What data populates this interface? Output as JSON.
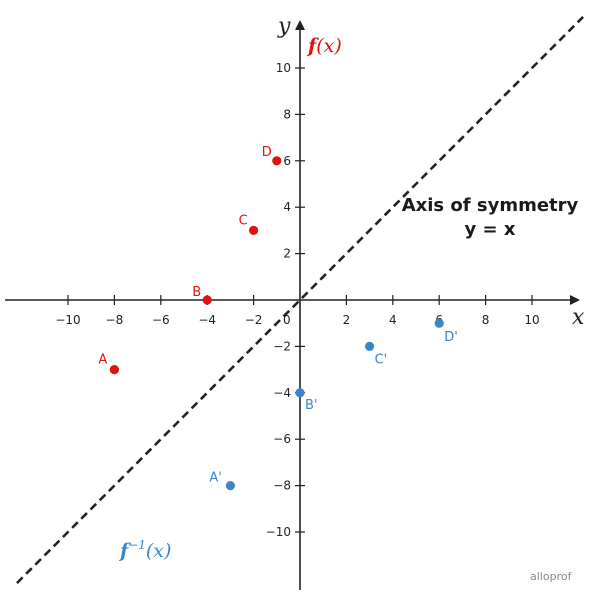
{
  "chart_data": {
    "type": "line",
    "xlabel": "x",
    "ylabel": "y",
    "xlim": [
      -12,
      12
    ],
    "ylim": [
      -12,
      12
    ],
    "grid": false,
    "x_ticks": [
      -10,
      -8,
      -6,
      -4,
      -2,
      2,
      4,
      6,
      8,
      10
    ],
    "y_ticks": [
      -10,
      -8,
      -6,
      -4,
      -2,
      2,
      4,
      6,
      8,
      10
    ],
    "origin_label": "0",
    "series": [
      {
        "name": "f(x)",
        "color": "#e0120f",
        "points": [
          {
            "label": "A",
            "x": -8,
            "y": -3
          },
          {
            "label": "B",
            "x": -4,
            "y": 0
          },
          {
            "label": "C",
            "x": -2,
            "y": 3
          },
          {
            "label": "D",
            "x": -1,
            "y": 6
          }
        ]
      },
      {
        "name": "f⁻¹(x)",
        "color": "#3a86c8",
        "points": [
          {
            "label": "A'",
            "x": -3,
            "y": -8
          },
          {
            "label": "B'",
            "x": 0,
            "y": -4
          },
          {
            "label": "C'",
            "x": 3,
            "y": -2
          },
          {
            "label": "D'",
            "x": 6,
            "y": -1
          }
        ]
      },
      {
        "name": "y = x",
        "color": "#222222",
        "style": "dashed"
      }
    ],
    "annotation": {
      "line1": "Axis of symmetry",
      "line2": "y = x"
    },
    "f_label": "f",
    "finv_label": "f",
    "finv_sup": "−1",
    "fn_arg": "(x)"
  },
  "brand": "alloprof"
}
